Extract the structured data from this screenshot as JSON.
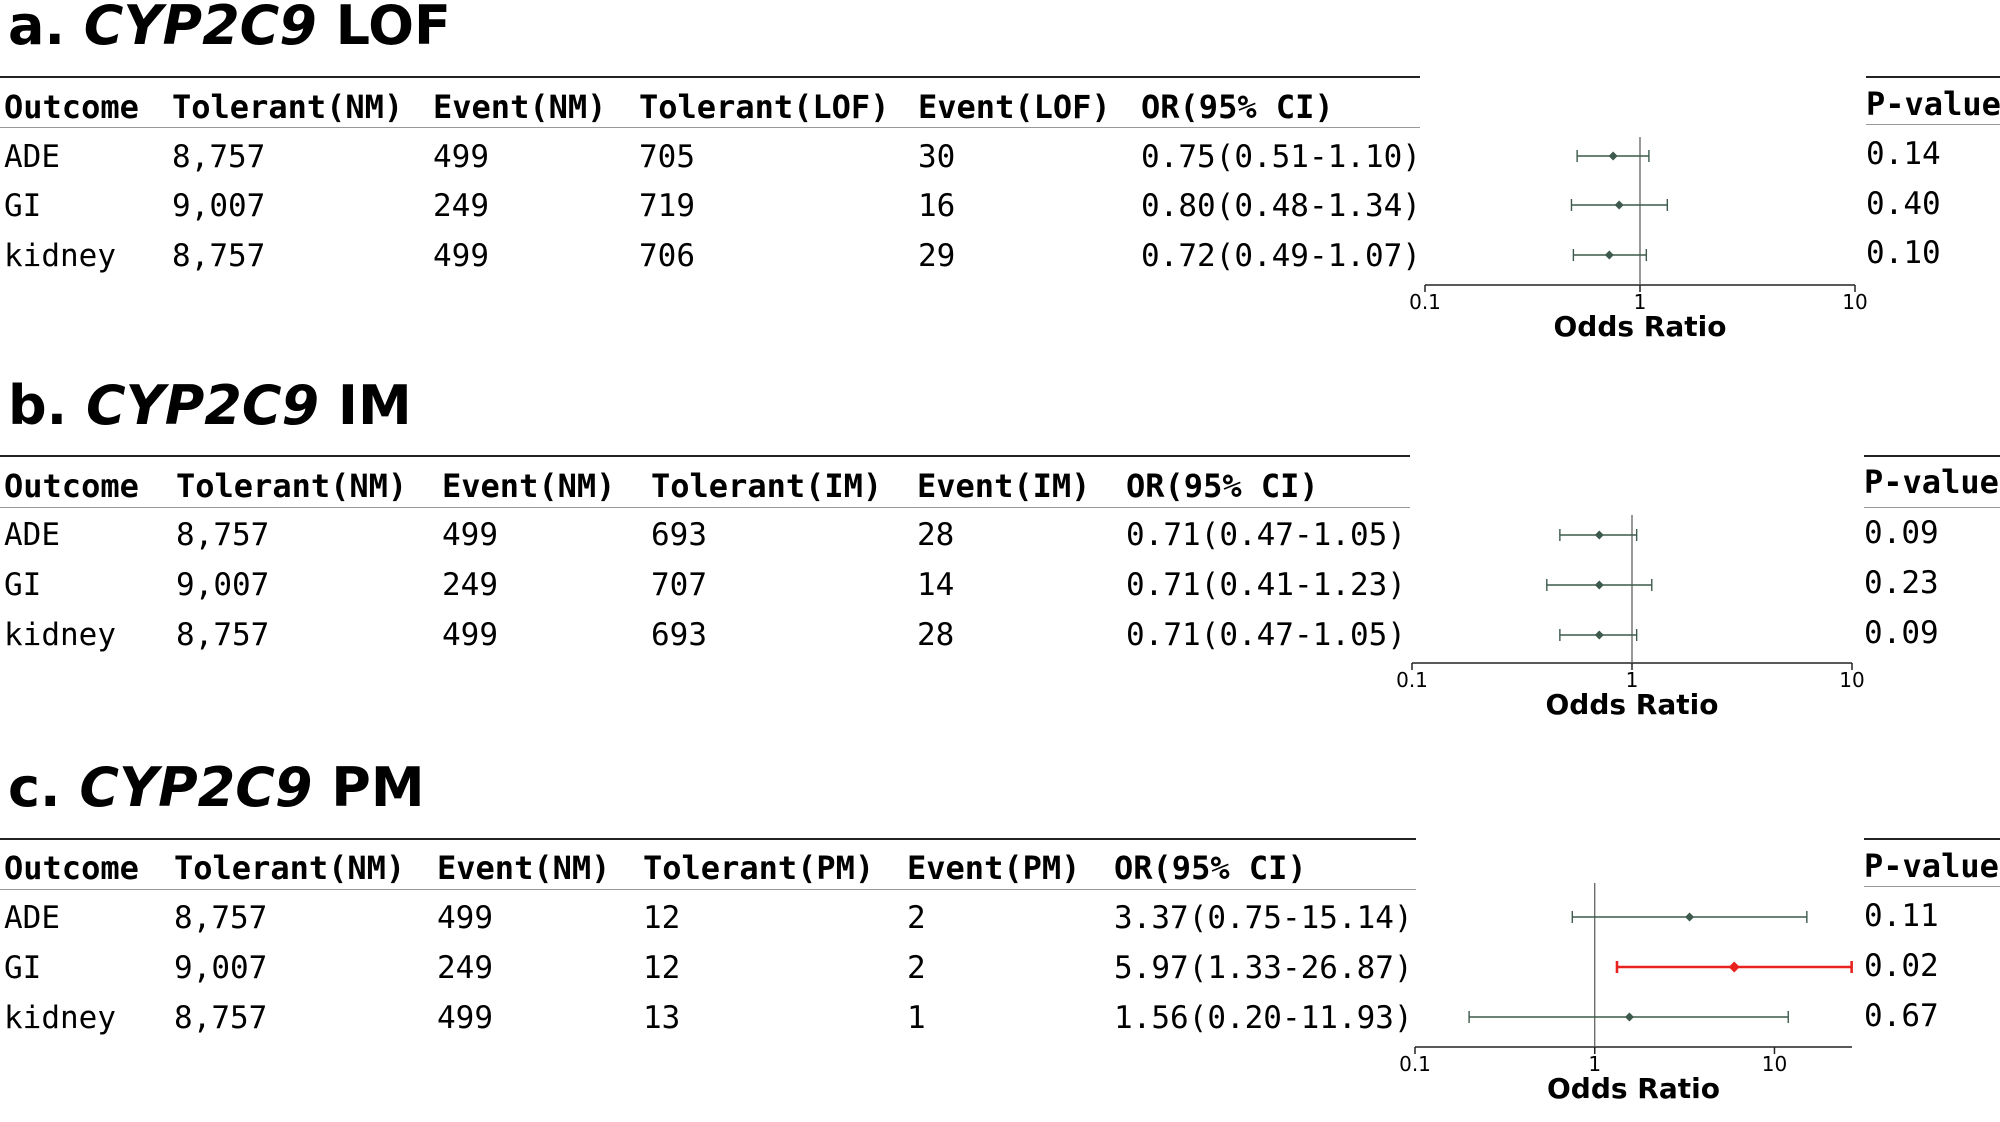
{
  "panels": [
    {
      "label": "a.",
      "gene": "CYP2C9",
      "variant": "LOF",
      "columns": [
        "Outcome",
        "Tolerant(NM)",
        "Event(NM)",
        "Tolerant(LOF)",
        "Event(LOF)",
        "OR(95% CI)"
      ],
      "rows": [
        [
          "ADE",
          "8,757",
          "499",
          "705",
          "30",
          "0.75(0.51-1.10)"
        ],
        [
          "GI",
          "9,007",
          "249",
          "719",
          "16",
          "0.80(0.48-1.34)"
        ],
        [
          "kidney",
          "8,757",
          "499",
          "706",
          "29",
          "0.72(0.49-1.07)"
        ]
      ],
      "pvalue_header": "P-value",
      "pvalues": [
        "0.14",
        "0.40",
        "0.10"
      ]
    },
    {
      "label": "b.",
      "gene": "CYP2C9",
      "variant": "IM",
      "columns": [
        "Outcome",
        "Tolerant(NM)",
        "Event(NM)",
        "Tolerant(IM)",
        "Event(IM)",
        "OR(95% CI)"
      ],
      "rows": [
        [
          "ADE",
          "8,757",
          "499",
          "693",
          "28",
          "0.71(0.47-1.05)"
        ],
        [
          "GI",
          "9,007",
          "249",
          "707",
          "14",
          "0.71(0.41-1.23)"
        ],
        [
          "kidney",
          "8,757",
          "499",
          "693",
          "28",
          "0.71(0.47-1.05)"
        ]
      ],
      "pvalue_header": "P-value",
      "pvalues": [
        "0.09",
        "0.23",
        "0.09"
      ]
    },
    {
      "label": "c.",
      "gene": "CYP2C9",
      "variant": "PM",
      "columns": [
        "Outcome",
        "Tolerant(NM)",
        "Event(NM)",
        "Tolerant(PM)",
        "Event(PM)",
        "OR(95% CI)"
      ],
      "rows": [
        [
          "ADE",
          "8,757",
          "499",
          "12",
          "2",
          "3.37(0.75-15.14)"
        ],
        [
          "GI",
          "9,007",
          "249",
          "12",
          "2",
          "5.97(1.33-26.87)"
        ],
        [
          "kidney",
          "8,757",
          "499",
          "13",
          "1",
          "1.56(0.20-11.93)"
        ]
      ],
      "pvalue_header": "P-value",
      "pvalues": [
        "0.11",
        "0.02",
        "0.67"
      ]
    }
  ],
  "chart_data": [
    {
      "type": "forest",
      "xscale": "log",
      "xlim": [
        0.1,
        10
      ],
      "xticks": [
        "0.1",
        "1",
        "10"
      ],
      "xlabel": "Odds Ratio",
      "reference_line": 1,
      "categories": [
        "ADE",
        "GI",
        "kidney"
      ],
      "points": [
        {
          "or": 0.75,
          "lo": 0.51,
          "hi": 1.1,
          "color": "#3d5a4c"
        },
        {
          "or": 0.8,
          "lo": 0.48,
          "hi": 1.34,
          "color": "#3d5a4c"
        },
        {
          "or": 0.72,
          "lo": 0.49,
          "hi": 1.07,
          "color": "#3d5a4c"
        }
      ]
    },
    {
      "type": "forest",
      "xscale": "log",
      "xlim": [
        0.1,
        10
      ],
      "xticks": [
        "0.1",
        "1",
        "10"
      ],
      "xlabel": "Odds Ratio",
      "reference_line": 1,
      "categories": [
        "ADE",
        "GI",
        "kidney"
      ],
      "points": [
        {
          "or": 0.71,
          "lo": 0.47,
          "hi": 1.05,
          "color": "#3d5a4c"
        },
        {
          "or": 0.71,
          "lo": 0.41,
          "hi": 1.23,
          "color": "#3d5a4c"
        },
        {
          "or": 0.71,
          "lo": 0.47,
          "hi": 1.05,
          "color": "#3d5a4c"
        }
      ]
    },
    {
      "type": "forest",
      "xscale": "log",
      "xlim": [
        0.1,
        27
      ],
      "xticks": [
        "0.1",
        "1",
        "10"
      ],
      "xlabel": "Odds Ratio",
      "reference_line": 1,
      "categories": [
        "ADE",
        "GI",
        "kidney"
      ],
      "points": [
        {
          "or": 3.37,
          "lo": 0.75,
          "hi": 15.14,
          "color": "#3d5a4c"
        },
        {
          "or": 5.97,
          "lo": 1.33,
          "hi": 26.87,
          "color": "#e8231f"
        },
        {
          "or": 1.56,
          "lo": 0.2,
          "hi": 11.93,
          "color": "#3d5a4c"
        }
      ]
    }
  ]
}
